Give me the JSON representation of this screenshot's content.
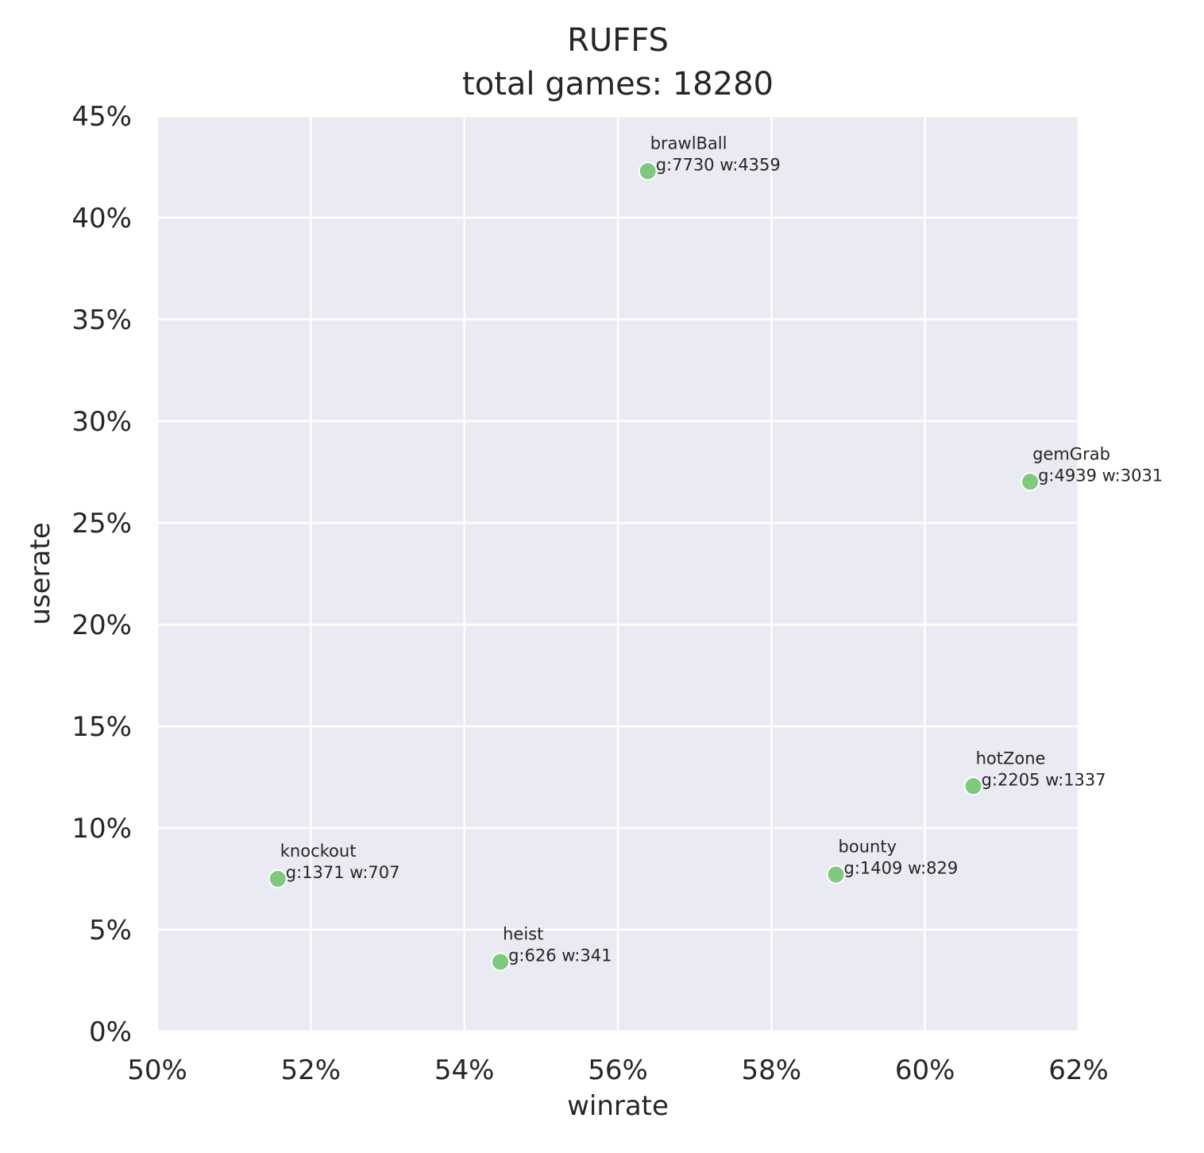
{
  "chart_data": {
    "type": "scatter",
    "title": "RUFFS",
    "subtitle": "total games: 18280",
    "xlabel": "winrate",
    "ylabel": "userate",
    "xlim": [
      0.5,
      0.62
    ],
    "ylim": [
      0.0,
      0.45
    ],
    "xticks": [
      0.5,
      0.52,
      0.54,
      0.56,
      0.58,
      0.6,
      0.62
    ],
    "xtick_labels": [
      "50%",
      "52%",
      "54%",
      "56%",
      "58%",
      "60%",
      "62%"
    ],
    "yticks": [
      0.0,
      0.05,
      0.1,
      0.15,
      0.2,
      0.25,
      0.3,
      0.35,
      0.4,
      0.45
    ],
    "ytick_labels": [
      "0%",
      "5%",
      "10%",
      "15%",
      "20%",
      "25%",
      "30%",
      "35%",
      "40%",
      "45%"
    ],
    "grid": true,
    "marker_color": "#7fc97f",
    "background_color": "#eaeaf2",
    "points": [
      {
        "name": "brawlBall",
        "stats": "g:7730 w:4359",
        "x": 0.5639,
        "y": 0.4229
      },
      {
        "name": "gemGrab",
        "stats": "g:4939 w:3031",
        "x": 0.6137,
        "y": 0.2702
      },
      {
        "name": "hotZone",
        "stats": "g:2205 w:1337",
        "x": 0.6063,
        "y": 0.1206
      },
      {
        "name": "bounty",
        "stats": "g:1409 w:829",
        "x": 0.5884,
        "y": 0.0771
      },
      {
        "name": "knockout",
        "stats": "g:1371 w:707",
        "x": 0.5157,
        "y": 0.075
      },
      {
        "name": "heist",
        "stats": "g:626 w:341",
        "x": 0.5447,
        "y": 0.0342
      }
    ]
  }
}
